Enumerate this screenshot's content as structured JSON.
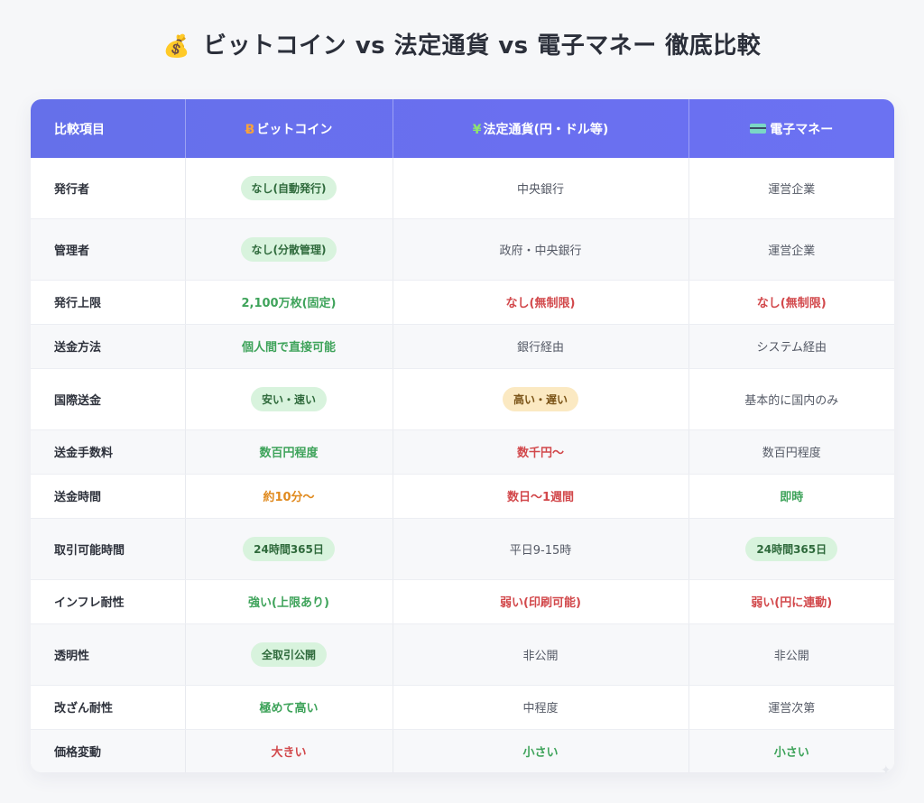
{
  "title": {
    "emoji": "💰",
    "text": "ビットコイン vs 法定通貨 vs 電子マネー 徹底比較"
  },
  "header": {
    "item": "比較項目",
    "bitcoin": {
      "icon": "Ƀ",
      "label": "ビットコイン"
    },
    "fiat": {
      "icon": "¥",
      "label": "法定通貨(円・ドル等)"
    },
    "emoney": {
      "icon": "credit-card-icon",
      "label": "電子マネー"
    }
  },
  "rows": [
    {
      "label": "発行者",
      "bitcoin": {
        "text": "なし(自動発行)",
        "style": "pill-green"
      },
      "fiat": {
        "text": "中央銀行",
        "style": "plain"
      },
      "emoney": {
        "text": "運営企業",
        "style": "plain"
      }
    },
    {
      "label": "管理者",
      "bitcoin": {
        "text": "なし(分散管理)",
        "style": "pill-green"
      },
      "fiat": {
        "text": "政府・中央銀行",
        "style": "plain"
      },
      "emoney": {
        "text": "運営企業",
        "style": "plain"
      }
    },
    {
      "label": "発行上限",
      "bitcoin": {
        "text": "2,100万枚(固定)",
        "style": "green"
      },
      "fiat": {
        "text": "なし(無制限)",
        "style": "red"
      },
      "emoney": {
        "text": "なし(無制限)",
        "style": "red"
      }
    },
    {
      "label": "送金方法",
      "bitcoin": {
        "text": "個人間で直接可能",
        "style": "green"
      },
      "fiat": {
        "text": "銀行経由",
        "style": "plain"
      },
      "emoney": {
        "text": "システム経由",
        "style": "plain"
      }
    },
    {
      "label": "国際送金",
      "bitcoin": {
        "text": "安い・速い",
        "style": "pill-green"
      },
      "fiat": {
        "text": "高い・遅い",
        "style": "pill-amber"
      },
      "emoney": {
        "text": "基本的に国内のみ",
        "style": "plain"
      }
    },
    {
      "label": "送金手数料",
      "bitcoin": {
        "text": "数百円程度",
        "style": "green"
      },
      "fiat": {
        "text": "数千円〜",
        "style": "red"
      },
      "emoney": {
        "text": "数百円程度",
        "style": "plain"
      }
    },
    {
      "label": "送金時間",
      "bitcoin": {
        "text": "約10分〜",
        "style": "orange"
      },
      "fiat": {
        "text": "数日〜1週間",
        "style": "red"
      },
      "emoney": {
        "text": "即時",
        "style": "green"
      }
    },
    {
      "label": "取引可能時間",
      "bitcoin": {
        "text": "24時間365日",
        "style": "pill-green"
      },
      "fiat": {
        "text": "平日9-15時",
        "style": "plain"
      },
      "emoney": {
        "text": "24時間365日",
        "style": "pill-green"
      }
    },
    {
      "label": "インフレ耐性",
      "bitcoin": {
        "text": "強い(上限あり)",
        "style": "green"
      },
      "fiat": {
        "text": "弱い(印刷可能)",
        "style": "red"
      },
      "emoney": {
        "text": "弱い(円に連動)",
        "style": "red"
      }
    },
    {
      "label": "透明性",
      "bitcoin": {
        "text": "全取引公開",
        "style": "pill-green"
      },
      "fiat": {
        "text": "非公開",
        "style": "plain"
      },
      "emoney": {
        "text": "非公開",
        "style": "plain"
      }
    },
    {
      "label": "改ざん耐性",
      "bitcoin": {
        "text": "極めて高い",
        "style": "green"
      },
      "fiat": {
        "text": "中程度",
        "style": "plain"
      },
      "emoney": {
        "text": "運営次第",
        "style": "plain"
      }
    },
    {
      "label": "価格変動",
      "bitcoin": {
        "text": "大きい",
        "style": "red"
      },
      "fiat": {
        "text": "小さい",
        "style": "green"
      },
      "emoney": {
        "text": "小さい",
        "style": "green"
      }
    }
  ]
}
